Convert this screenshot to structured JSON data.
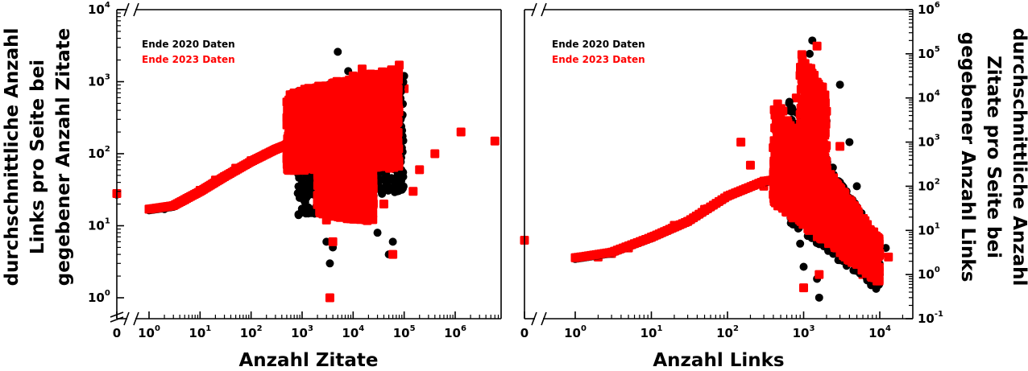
{
  "chart_data": [
    {
      "type": "scatter",
      "xlabel": "Anzahl Zitate",
      "ylabel": [
        "durchschnittliche Anzahl",
        "Links pro Seite bei",
        "gegebener Anzahl Zitate"
      ],
      "xscale": "log",
      "yscale": "log",
      "xlim": [
        0.5,
        10000000
      ],
      "ylim": [
        0.45,
        10000
      ],
      "axis_break": true,
      "x_ticks": [
        {
          "base": "0",
          "exp": ""
        },
        {
          "base": "10",
          "exp": "0"
        },
        {
          "base": "10",
          "exp": "1"
        },
        {
          "base": "10",
          "exp": "2"
        },
        {
          "base": "10",
          "exp": "3"
        },
        {
          "base": "10",
          "exp": "4"
        },
        {
          "base": "10",
          "exp": "5"
        },
        {
          "base": "10",
          "exp": "6"
        }
      ],
      "y_ticks": [
        {
          "base": "10",
          "exp": "0"
        },
        {
          "base": "10",
          "exp": "1"
        },
        {
          "base": "10",
          "exp": "2"
        },
        {
          "base": "10",
          "exp": "3"
        },
        {
          "base": "10",
          "exp": "4"
        }
      ],
      "legend_position": "top-left",
      "series": [
        {
          "name": "Ende 2020 Daten",
          "color": "#000000",
          "marker": "circle",
          "points": [
            [
              0,
              27
            ],
            [
              1,
              17
            ],
            [
              2,
              17
            ],
            [
              3,
              19
            ],
            [
              5,
              22
            ],
            [
              10,
              30
            ],
            [
              20,
              42
            ],
            [
              50,
              62
            ],
            [
              100,
              78
            ],
            [
              200,
              98
            ],
            [
              500,
              132
            ],
            [
              1000,
              40
            ],
            [
              2000,
              20
            ],
            [
              3000,
              6
            ],
            [
              3500,
              3
            ],
            [
              4000,
              5
            ],
            [
              5000,
              2600
            ],
            [
              8000,
              1400
            ],
            [
              10000,
              400
            ],
            [
              20000,
              25
            ],
            [
              30000,
              8
            ],
            [
              50000,
              4
            ],
            [
              60000,
              6
            ],
            [
              80000,
              200
            ],
            [
              100000,
              1200
            ]
          ]
        },
        {
          "name": "Ende 2023 Daten",
          "color": "#ff0000",
          "marker": "square",
          "points": [
            [
              0,
              28
            ],
            [
              1,
              17
            ],
            [
              2,
              18
            ],
            [
              3,
              19
            ],
            [
              5,
              23
            ],
            [
              10,
              31
            ],
            [
              20,
              43
            ],
            [
              50,
              63
            ],
            [
              100,
              80
            ],
            [
              200,
              100
            ],
            [
              500,
              135
            ],
            [
              1000,
              300
            ],
            [
              2000,
              50
            ],
            [
              3000,
              12
            ],
            [
              3500,
              1
            ],
            [
              4000,
              6
            ],
            [
              5000,
              800
            ],
            [
              10000,
              1200
            ],
            [
              15000,
              1500
            ],
            [
              20000,
              300
            ],
            [
              30000,
              40
            ],
            [
              40000,
              20
            ],
            [
              60000,
              4
            ],
            [
              80000,
              1700
            ],
            [
              100000,
              800
            ],
            [
              150000,
              30
            ],
            [
              200000,
              60
            ],
            [
              400000,
              100
            ],
            [
              1300000,
              200
            ],
            [
              6000000,
              150
            ]
          ]
        }
      ]
    },
    {
      "type": "scatter",
      "xlabel": "Anzahl Links",
      "ylabel": [
        "durchschnittliche Anzahl",
        "Zitate pro Seite bei",
        "gegebener Anzahl Links"
      ],
      "xscale": "log",
      "yscale": "log",
      "xlim": [
        0.5,
        30000
      ],
      "ylim": [
        0.085,
        1000000
      ],
      "axis_break": true,
      "x_ticks": [
        {
          "base": "0",
          "exp": ""
        },
        {
          "base": "10",
          "exp": "0"
        },
        {
          "base": "10",
          "exp": "1"
        },
        {
          "base": "10",
          "exp": "2"
        },
        {
          "base": "10",
          "exp": "3"
        },
        {
          "base": "10",
          "exp": "4"
        }
      ],
      "y_ticks": [
        {
          "base": "10",
          "exp": "-1"
        },
        {
          "base": "10",
          "exp": "0"
        },
        {
          "base": "10",
          "exp": "1"
        },
        {
          "base": "10",
          "exp": "2"
        },
        {
          "base": "10",
          "exp": "3"
        },
        {
          "base": "10",
          "exp": "4"
        },
        {
          "base": "10",
          "exp": "5"
        },
        {
          "base": "10",
          "exp": "6"
        }
      ],
      "legend_position": "top-left",
      "series": [
        {
          "name": "Ende 2020 Daten",
          "color": "#000000",
          "marker": "circle",
          "points": [
            [
              0,
              6
            ],
            [
              1,
              2.5
            ],
            [
              2,
              2.6
            ],
            [
              3,
              3
            ],
            [
              5,
              4
            ],
            [
              10,
              7
            ],
            [
              20,
              13
            ],
            [
              50,
              30
            ],
            [
              100,
              60
            ],
            [
              200,
              100
            ],
            [
              400,
              150
            ],
            [
              700,
              1000
            ],
            [
              800,
              20
            ],
            [
              900,
              5
            ],
            [
              1000,
              1.5
            ],
            [
              1200,
              100000
            ],
            [
              1300,
              200000
            ],
            [
              1500,
              0.8
            ],
            [
              1600,
              0.3
            ],
            [
              2000,
              3000
            ],
            [
              3000,
              20000
            ],
            [
              4000,
              1000
            ],
            [
              5000,
              100
            ],
            [
              8000,
              10
            ],
            [
              10000,
              1
            ],
            [
              12000,
              4
            ]
          ]
        },
        {
          "name": "Ende 2023 Daten",
          "color": "#ff0000",
          "marker": "square",
          "points": [
            [
              0,
              6
            ],
            [
              1,
              2.4
            ],
            [
              2,
              2.5
            ],
            [
              3,
              3
            ],
            [
              5,
              4
            ],
            [
              10,
              7
            ],
            [
              20,
              13
            ],
            [
              50,
              30
            ],
            [
              100,
              60
            ],
            [
              150,
              1000
            ],
            [
              200,
              300
            ],
            [
              300,
              100
            ],
            [
              500,
              2000
            ],
            [
              800,
              10000
            ],
            [
              1000,
              0.5
            ],
            [
              1300,
              30000
            ],
            [
              1500,
              150000
            ],
            [
              1600,
              1
            ],
            [
              2000,
              5000
            ],
            [
              3000,
              800
            ],
            [
              4000,
              50
            ],
            [
              5000,
              30
            ],
            [
              6000,
              1
            ],
            [
              8000,
              2
            ],
            [
              10000,
              3
            ],
            [
              13000,
              2.5
            ]
          ]
        }
      ]
    }
  ]
}
